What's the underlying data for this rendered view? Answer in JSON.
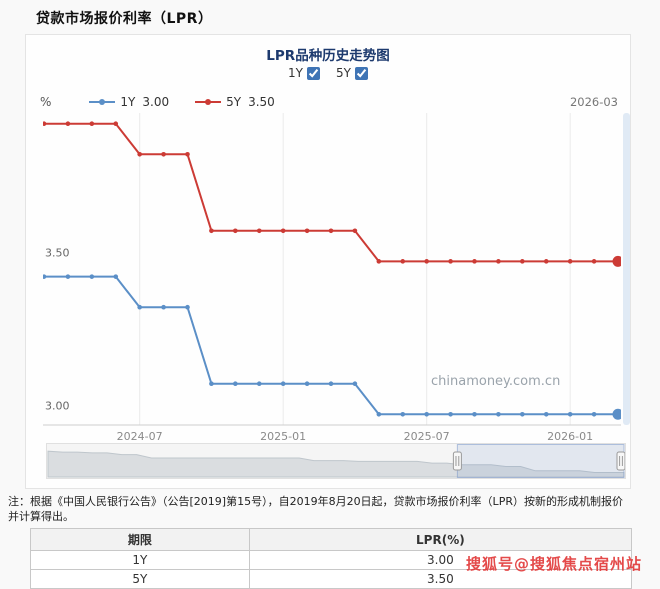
{
  "page": {
    "title": "贷款市场报价利率（LPR）",
    "note": {
      "line1": "注：根据《中国人民银行公告》（公告[2019]第15号），自2019年8月20日起，贷款市场报价利率（LPR）按新的形成机制报价",
      "line2": "并计算得出。"
    },
    "sohu_watermark": "搜狐号@搜狐焦点宿州站"
  },
  "chart": {
    "title": "LPR品种历史走势图",
    "unit_label": "%",
    "current_date_label": "2026-03",
    "watermark": "chinamoney.com.cn",
    "checkboxes": [
      {
        "label": "1Y",
        "checked": true
      },
      {
        "label": "5Y",
        "checked": true
      }
    ],
    "legend": [
      {
        "name": "1Y",
        "value": "3.00",
        "color": "#5b8fc7"
      },
      {
        "name": "5Y",
        "value": "3.50",
        "color": "#cc3b35"
      }
    ]
  },
  "chart_data": {
    "type": "line",
    "title": "LPR品种历史走势图",
    "xlabel": "",
    "ylabel": "%",
    "legend_position": "top",
    "grid": true,
    "x": [
      "2024-03",
      "2024-04",
      "2024-05",
      "2024-06",
      "2024-07",
      "2024-08",
      "2024-09",
      "2024-10",
      "2024-11",
      "2024-12",
      "2025-01",
      "2025-02",
      "2025-03",
      "2025-04",
      "2025-05",
      "2025-06",
      "2025-07",
      "2025-08",
      "2025-09",
      "2025-10",
      "2025-11",
      "2025-12",
      "2026-01",
      "2026-02",
      "2026-03"
    ],
    "series": [
      {
        "name": "1Y",
        "color": "#5b8fc7",
        "values": [
          3.45,
          3.45,
          3.45,
          3.45,
          3.35,
          3.35,
          3.35,
          3.1,
          3.1,
          3.1,
          3.1,
          3.1,
          3.1,
          3.1,
          3.0,
          3.0,
          3.0,
          3.0,
          3.0,
          3.0,
          3.0,
          3.0,
          3.0,
          3.0,
          3.0
        ]
      },
      {
        "name": "5Y",
        "color": "#cc3b35",
        "values": [
          3.95,
          3.95,
          3.95,
          3.95,
          3.85,
          3.85,
          3.85,
          3.6,
          3.6,
          3.6,
          3.6,
          3.6,
          3.6,
          3.6,
          3.5,
          3.5,
          3.5,
          3.5,
          3.5,
          3.5,
          3.5,
          3.5,
          3.5,
          3.5,
          3.5
        ]
      }
    ],
    "ylim": [
      2.965,
      3.985
    ],
    "y_ticks": [
      3.5,
      3.0
    ],
    "x_ticks": [
      "2024-07",
      "2025-01",
      "2025-07",
      "2026-01"
    ],
    "navigator": {
      "mini_values": [
        4.25,
        4.2,
        4.2,
        4.15,
        4.15,
        4.05,
        4.05,
        3.85,
        3.85,
        3.85,
        3.85,
        3.85,
        3.85,
        3.85,
        3.85,
        3.85,
        3.85,
        3.85,
        3.7,
        3.7,
        3.7,
        3.65,
        3.65,
        3.65,
        3.65,
        3.65,
        3.55,
        3.55,
        3.45,
        3.45,
        3.45,
        3.35,
        3.35,
        3.1,
        3.1,
        3.1,
        3.1,
        3.0,
        3.0,
        3.0
      ],
      "range_start_pct": 71,
      "range_end_pct": 100
    }
  },
  "table": {
    "headers": [
      "期限",
      "LPR(%)"
    ],
    "rows": [
      [
        "1Y",
        "3.00"
      ],
      [
        "5Y",
        "3.50"
      ]
    ]
  }
}
